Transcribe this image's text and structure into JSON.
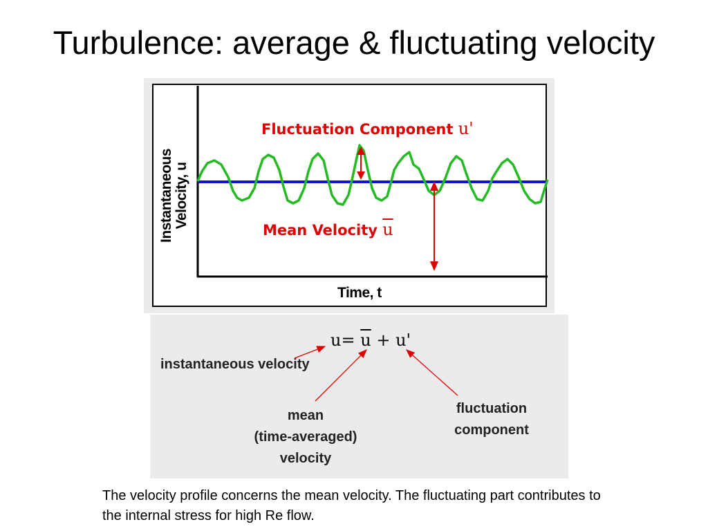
{
  "slide": {
    "title": "Turbulence: average & fluctuating velocity",
    "caption": "The velocity profile concerns the mean velocity.  The fluctuating part contributes to the internal stress for high Re flow."
  },
  "plot": {
    "y_axis_label_line1": "Instantaneous",
    "y_axis_label_line2": "Velocity, u",
    "x_axis_label": "Time, t",
    "fluctuation_label": "Fluctuation Component",
    "fluctuation_symbol": "u'",
    "mean_label": "Mean Velocity",
    "mean_symbol": "u",
    "colors": {
      "signal": "#22bb22",
      "mean": "#1010dd",
      "annotation": "#e00000"
    }
  },
  "equation": {
    "lhs": "u",
    "equals": "=",
    "mean_term": "u",
    "plus": "+",
    "fluct_term": "u'"
  },
  "notes": {
    "instantaneous": "instantaneous velocity",
    "mean_line1": "mean",
    "mean_line2": "(time-averaged)",
    "mean_line3": "velocity",
    "fluct_line1": "fluctuation",
    "fluct_line2": "component"
  }
}
